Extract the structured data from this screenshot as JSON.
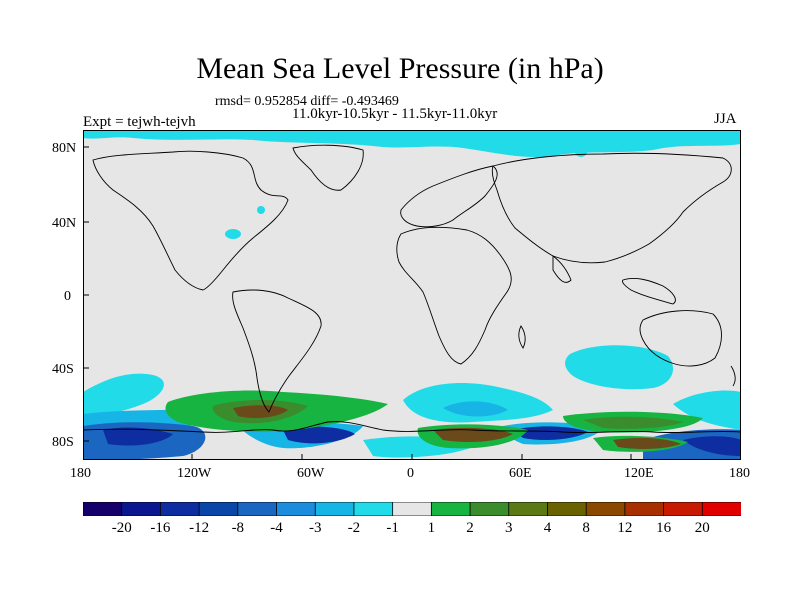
{
  "title": "Mean Sea Level Pressure (in hPa)",
  "stats": "rmsd= 0.952854 diff= -0.493469",
  "period": "11.0kyr-10.5kyr - 11.5kyr-11.0kyr",
  "experiment": "Expt = tejwh-tejvh",
  "season": "JJA",
  "lat_labels": [
    "80N",
    "40N",
    "0",
    "40S",
    "80S"
  ],
  "lon_labels": [
    "180",
    "120W",
    "60W",
    "0",
    "60E",
    "120E",
    "180"
  ],
  "colorbar": {
    "labels": [
      "-20",
      "-16",
      "-12",
      "-8",
      "-4",
      "-3",
      "-2",
      "-1",
      "1",
      "2",
      "3",
      "4",
      "8",
      "12",
      "16",
      "20"
    ],
    "colors": [
      "#15006b",
      "#0b178f",
      "#0d2da0",
      "#0a46a8",
      "#1b66c0",
      "#1b8ddc",
      "#17b4e6",
      "#22dbe8",
      "#e6e6e6",
      "#17b441",
      "#3b8c2d",
      "#5b7a15",
      "#6a6200",
      "#8a4800",
      "#a83000",
      "#c81a00",
      "#e00000"
    ]
  },
  "colors": {
    "land_background": "#e6e6e6",
    "light_cyan": "#22dbe8",
    "cyan": "#17b4e6",
    "blue": "#1b66c0",
    "dark_blue": "#0d2da0",
    "green": "#17b441",
    "olive": "#3b8c2d",
    "brown": "#6a4a1a"
  }
}
